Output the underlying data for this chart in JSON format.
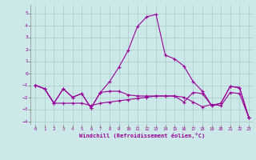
{
  "xlabel": "Windchill (Refroidissement éolien,°C)",
  "bg_color": "#cce8e8",
  "grid_color": "#aacccc",
  "line_color": "#990099",
  "xlim": [
    -0.5,
    23.5
  ],
  "ylim": [
    -4.3,
    5.7
  ],
  "yticks": [
    -4,
    -3,
    -2,
    -1,
    0,
    1,
    2,
    3,
    4,
    5
  ],
  "xticks": [
    0,
    1,
    2,
    3,
    4,
    5,
    6,
    7,
    8,
    9,
    10,
    11,
    12,
    13,
    14,
    15,
    16,
    17,
    18,
    19,
    20,
    21,
    22,
    23
  ],
  "series1_x": [
    0,
    1,
    2,
    3,
    4,
    5,
    6,
    7,
    8,
    9,
    10,
    11,
    12,
    13,
    14,
    15,
    16,
    17,
    18,
    19,
    20,
    21,
    22,
    23
  ],
  "series1_y": [
    -1.0,
    -1.3,
    -2.5,
    -1.3,
    -2.0,
    -1.7,
    -2.9,
    -1.6,
    -0.7,
    0.5,
    1.9,
    3.9,
    4.7,
    4.9,
    1.5,
    1.2,
    0.6,
    -0.7,
    -1.5,
    -2.7,
    -2.5,
    -1.1,
    -1.2,
    -3.7
  ],
  "series2_x": [
    0,
    1,
    2,
    3,
    4,
    5,
    6,
    7,
    8,
    9,
    10,
    11,
    12,
    13,
    14,
    15,
    16,
    17,
    18,
    19,
    20,
    21,
    22,
    23
  ],
  "series2_y": [
    -1.0,
    -1.3,
    -2.5,
    -2.5,
    -2.5,
    -2.5,
    -2.7,
    -2.5,
    -2.4,
    -2.3,
    -2.2,
    -2.1,
    -2.0,
    -1.9,
    -1.9,
    -1.9,
    -2.0,
    -2.4,
    -2.8,
    -2.6,
    -2.7,
    -1.6,
    -1.7,
    -3.7
  ],
  "series3_x": [
    0,
    1,
    2,
    3,
    4,
    5,
    6,
    7,
    8,
    9,
    10,
    11,
    12,
    13,
    14,
    15,
    16,
    17,
    18,
    19,
    20,
    21,
    22,
    23
  ],
  "series3_y": [
    -1.0,
    -1.3,
    -2.5,
    -1.3,
    -2.0,
    -1.7,
    -2.9,
    -1.6,
    -1.5,
    -1.5,
    -1.8,
    -1.9,
    -1.9,
    -1.9,
    -1.9,
    -1.9,
    -2.4,
    -1.6,
    -1.7,
    -2.7,
    -2.5,
    -1.1,
    -1.2,
    -3.7
  ]
}
